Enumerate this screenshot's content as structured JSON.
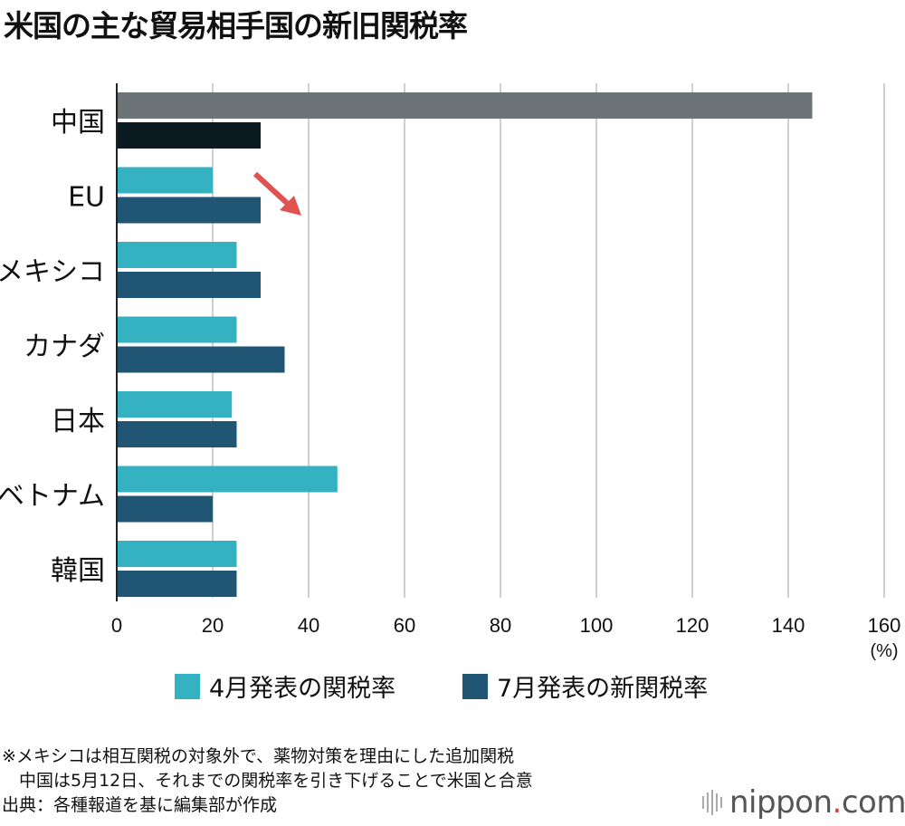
{
  "title": "米国の主な貿易相手国の新旧関税率",
  "chart_data": {
    "type": "bar",
    "orientation": "horizontal",
    "categories": [
      "中国",
      "EU",
      "メキシコ",
      "カナダ",
      "日本",
      "ベトナム",
      "韓国"
    ],
    "series": [
      {
        "name": "4月発表の関税率",
        "color": "#35b2c1",
        "values": [
          145,
          20,
          25,
          25,
          24,
          46,
          25
        ],
        "overrides": {
          "中国": "#6d7478"
        }
      },
      {
        "name": "7月発表の新関税率",
        "color": "#215574",
        "values": [
          30,
          30,
          30,
          35,
          25,
          20,
          25
        ],
        "overrides": {
          "中国": "#0c1a22"
        }
      }
    ],
    "xlim": [
      0,
      160
    ],
    "xticks": [
      0,
      20,
      40,
      60,
      80,
      100,
      120,
      140,
      160
    ],
    "xunit": "(%)",
    "grid": "vertical",
    "legend": "bottom",
    "annotation": {
      "type": "arrow",
      "color": "#e0524f",
      "near": "EU"
    }
  },
  "notes": [
    "※メキシコは相互関税の対象外で、薬物対策を理由にした追加関税",
    "　中国は5月12日、それまでの関税率を引き下げることで米国と合意",
    "出典：各種報道を基に編集部が作成"
  ],
  "logo": {
    "text": "nippon",
    "dot": ".",
    "suffix": "com"
  }
}
